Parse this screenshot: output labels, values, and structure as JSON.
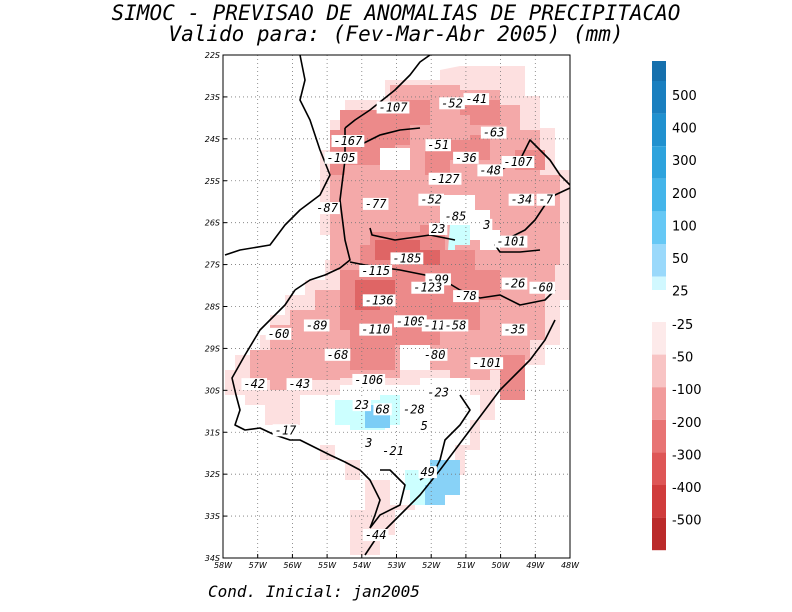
{
  "title": "SIMOC - PREVISAO DE ANOMALIAS DE PRECIPITACAO",
  "subtitle": "Valido para: (Fev-Mar-Abr 2005) (mm)",
  "footer": "Cond. Inicial: jan2005",
  "map": {
    "lon_range": [
      -58,
      -48
    ],
    "lat_range": [
      -34,
      -22
    ],
    "lon_ticks": [
      "58W",
      "57W",
      "56W",
      "55W",
      "54W",
      "53W",
      "52W",
      "51W",
      "50W",
      "49W",
      "48W"
    ],
    "lat_ticks": [
      "22S",
      "23S",
      "24S",
      "25S",
      "26S",
      "27S",
      "28S",
      "29S",
      "30S",
      "31S",
      "32S",
      "33S",
      "34S"
    ],
    "grid": true
  },
  "colors": {
    "neg_25": "#fde0e0",
    "neg_50": "#f7b8b8",
    "neg_100": "#ef8f8f",
    "neg_200": "#e06868",
    "pos_25": "#ccffff",
    "pos_50": "#88ddff",
    "pos_100": "#55bbee"
  },
  "colorbar": {
    "positive": [
      {
        "label": "500",
        "color": "#1a7fbf"
      },
      {
        "label": "400",
        "color": "#2191cf"
      },
      {
        "label": "300",
        "color": "#2ea3dd"
      },
      {
        "label": "200",
        "color": "#44b5ea"
      },
      {
        "label": "100",
        "color": "#66c8f5"
      },
      {
        "label": "50",
        "color": "#9ad9fb"
      },
      {
        "label": "25",
        "color": "#d1f8ff"
      }
    ],
    "negative": [
      {
        "label": "-25",
        "color": "#fdeaea"
      },
      {
        "label": "-50",
        "color": "#f8c4c4"
      },
      {
        "label": "-100",
        "color": "#f19b9b"
      },
      {
        "label": "-200",
        "color": "#e87474"
      },
      {
        "label": "-300",
        "color": "#de5656"
      },
      {
        "label": "-400",
        "color": "#d03c3c"
      },
      {
        "label": "-500",
        "color": "#bb2a2a"
      }
    ],
    "extra_neg_color": "#a81d1d"
  },
  "anomaly_labels": [
    {
      "text": "-107",
      "lon": -53.1,
      "lat": -23.3
    },
    {
      "text": "-52",
      "lon": -51.4,
      "lat": -23.2
    },
    {
      "text": "-41",
      "lon": -50.7,
      "lat": -23.1
    },
    {
      "text": "-63",
      "lon": -50.2,
      "lat": -23.9
    },
    {
      "text": "-167",
      "lon": -54.4,
      "lat": -24.1
    },
    {
      "text": "-51",
      "lon": -51.8,
      "lat": -24.2
    },
    {
      "text": "-105",
      "lon": -54.6,
      "lat": -24.5
    },
    {
      "text": "-36",
      "lon": -51.0,
      "lat": -24.5
    },
    {
      "text": "-107",
      "lon": -49.5,
      "lat": -24.6
    },
    {
      "text": "-48",
      "lon": -50.3,
      "lat": -24.8
    },
    {
      "text": "-127",
      "lon": -51.6,
      "lat": -25.0
    },
    {
      "text": "-34",
      "lon": -49.4,
      "lat": -25.5
    },
    {
      "text": "-7",
      "lon": -48.7,
      "lat": -25.5
    },
    {
      "text": "-87",
      "lon": -55.0,
      "lat": -25.7
    },
    {
      "text": "-77",
      "lon": -53.6,
      "lat": -25.6
    },
    {
      "text": "-52",
      "lon": -52.0,
      "lat": -25.5
    },
    {
      "text": "-85",
      "lon": -51.3,
      "lat": -25.9
    },
    {
      "text": "3",
      "lon": -50.4,
      "lat": -26.1
    },
    {
      "text": "23",
      "lon": -51.8,
      "lat": -26.2
    },
    {
      "text": "-101",
      "lon": -49.7,
      "lat": -26.5
    },
    {
      "text": "-185",
      "lon": -52.7,
      "lat": -26.9
    },
    {
      "text": "-115",
      "lon": -53.6,
      "lat": -27.2
    },
    {
      "text": "-99",
      "lon": -51.8,
      "lat": -27.4
    },
    {
      "text": "-123",
      "lon": -52.1,
      "lat": -27.6
    },
    {
      "text": "-26",
      "lon": -49.6,
      "lat": -27.5
    },
    {
      "text": "-60",
      "lon": -48.8,
      "lat": -27.6
    },
    {
      "text": "-78",
      "lon": -51.0,
      "lat": -27.8
    },
    {
      "text": "-136",
      "lon": -53.5,
      "lat": -27.9
    },
    {
      "text": "-60",
      "lon": -56.4,
      "lat": -28.7
    },
    {
      "text": "-89",
      "lon": -55.3,
      "lat": -28.5
    },
    {
      "text": "-109",
      "lon": -52.6,
      "lat": -28.4
    },
    {
      "text": "-116",
      "lon": -51.8,
      "lat": -28.5
    },
    {
      "text": "-58",
      "lon": -51.3,
      "lat": -28.5
    },
    {
      "text": "-110",
      "lon": -53.6,
      "lat": -28.6
    },
    {
      "text": "-35",
      "lon": -49.6,
      "lat": -28.6
    },
    {
      "text": "-68",
      "lon": -54.7,
      "lat": -29.2
    },
    {
      "text": "-80",
      "lon": -51.9,
      "lat": -29.2
    },
    {
      "text": "-101",
      "lon": -50.4,
      "lat": -29.4
    },
    {
      "text": "-42",
      "lon": -57.1,
      "lat": -29.9
    },
    {
      "text": "-43",
      "lon": -55.8,
      "lat": -29.9
    },
    {
      "text": "-106",
      "lon": -53.8,
      "lat": -29.8
    },
    {
      "text": "-23",
      "lon": -51.8,
      "lat": -30.1
    },
    {
      "text": "23",
      "lon": -54.0,
      "lat": -30.4
    },
    {
      "text": "68",
      "lon": -53.4,
      "lat": -30.5
    },
    {
      "text": "-28",
      "lon": -52.5,
      "lat": -30.5
    },
    {
      "text": "5",
      "lon": -52.2,
      "lat": -30.9
    },
    {
      "text": "-17",
      "lon": -56.2,
      "lat": -31.0
    },
    {
      "text": "3",
      "lon": -53.8,
      "lat": -31.3
    },
    {
      "text": "-21",
      "lon": -53.1,
      "lat": -31.5
    },
    {
      "text": "49",
      "lon": -52.1,
      "lat": -32.0
    },
    {
      "text": "-44",
      "lon": -53.6,
      "lat": -33.5
    }
  ]
}
